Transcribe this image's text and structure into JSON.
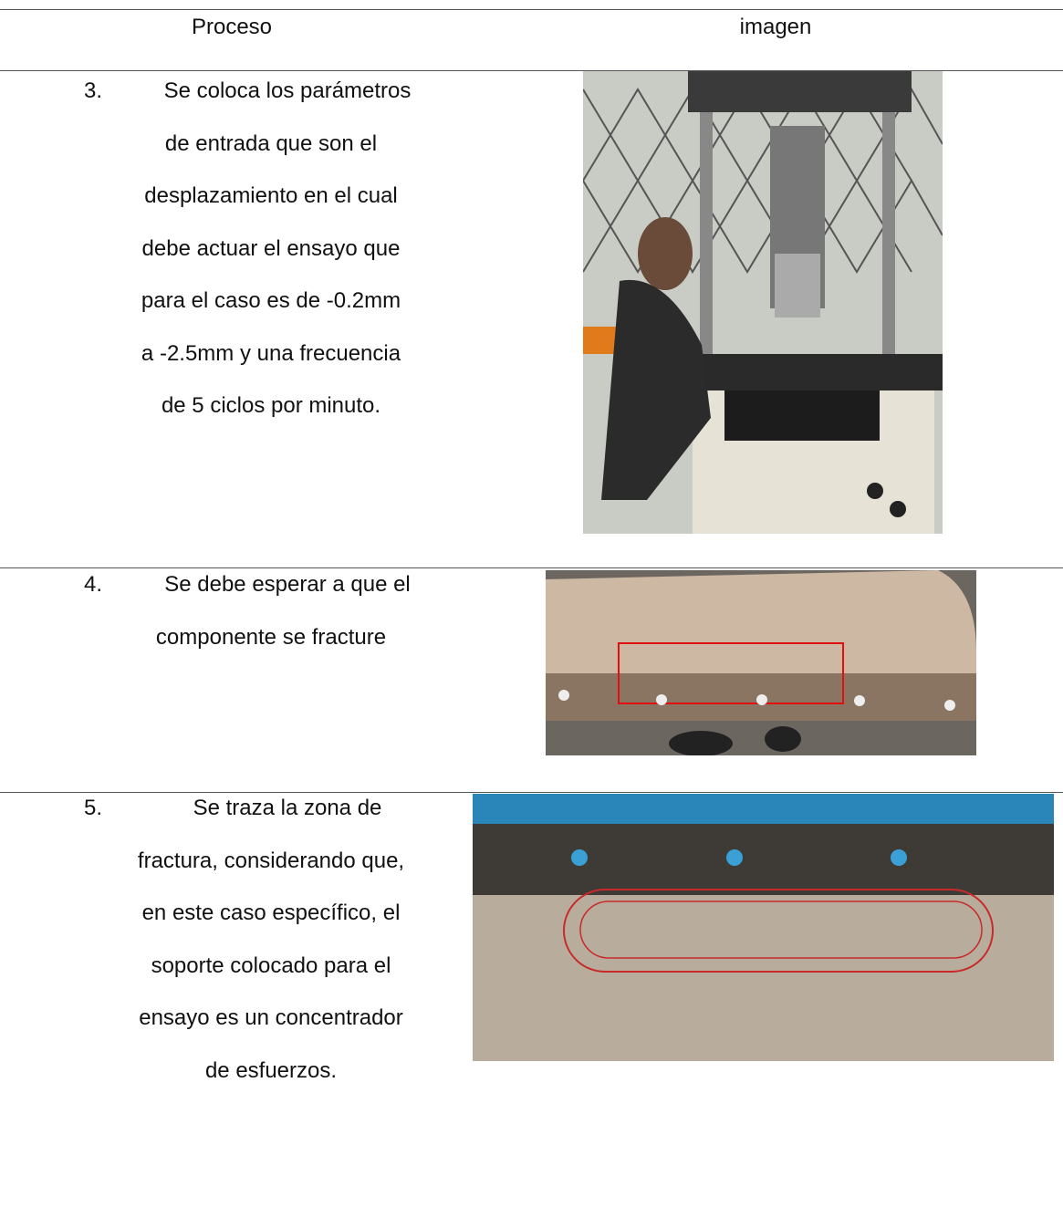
{
  "header": {
    "col1": "Proceso",
    "col2": "imagen"
  },
  "rows": [
    {
      "number": "3.",
      "lines": [
        "Se coloca los parámetros",
        "de entrada que son el",
        "desplazamiento en el cual",
        "debe actuar el ensayo que",
        "para el caso es de -0.2mm",
        "a -2.5mm y una frecuencia",
        "de 5 ciclos por minuto."
      ]
    },
    {
      "number": "4.",
      "lines": [
        "Se debe esperar a que el",
        "componente se fracture"
      ]
    },
    {
      "number": "5.",
      "lines": [
        "Se traza la zona de",
        "fractura, considerando que,",
        "en este caso específico, el",
        "soporte colocado para el",
        "ensayo es un concentrador",
        "de esfuerzos."
      ]
    }
  ]
}
